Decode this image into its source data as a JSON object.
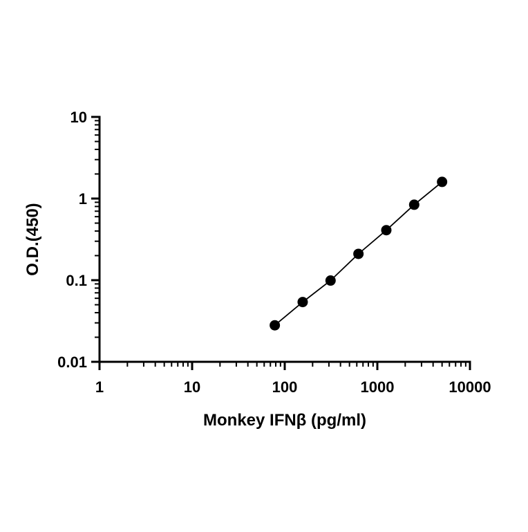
{
  "chart_data": {
    "type": "scatter",
    "xlabel": "Monkey IFNβ (pg/ml)",
    "ylabel": "O.D.(450)",
    "x_scale": "log",
    "y_scale": "log",
    "xlim": [
      1,
      10000
    ],
    "ylim": [
      0.01,
      10
    ],
    "x_ticks": [
      {
        "value": 1,
        "label": "1"
      },
      {
        "value": 10,
        "label": "10"
      },
      {
        "value": 100,
        "label": "100"
      },
      {
        "value": 1000,
        "label": "1000"
      },
      {
        "value": 10000,
        "label": "10000"
      }
    ],
    "y_ticks": [
      {
        "value": 0.01,
        "label": "0.01"
      },
      {
        "value": 0.1,
        "label": "0.1"
      },
      {
        "value": 1,
        "label": "1"
      },
      {
        "value": 10,
        "label": "10"
      }
    ],
    "grid": false,
    "legend": "none",
    "series": [
      {
        "color": "#000000",
        "marker": "circle",
        "fit_line": true,
        "points": [
          {
            "x": 78.125,
            "y": 0.028
          },
          {
            "x": 156.25,
            "y": 0.054
          },
          {
            "x": 312.5,
            "y": 0.099
          },
          {
            "x": 625,
            "y": 0.21
          },
          {
            "x": 1250,
            "y": 0.41
          },
          {
            "x": 2500,
            "y": 0.84
          },
          {
            "x": 5000,
            "y": 1.6
          }
        ]
      }
    ]
  }
}
